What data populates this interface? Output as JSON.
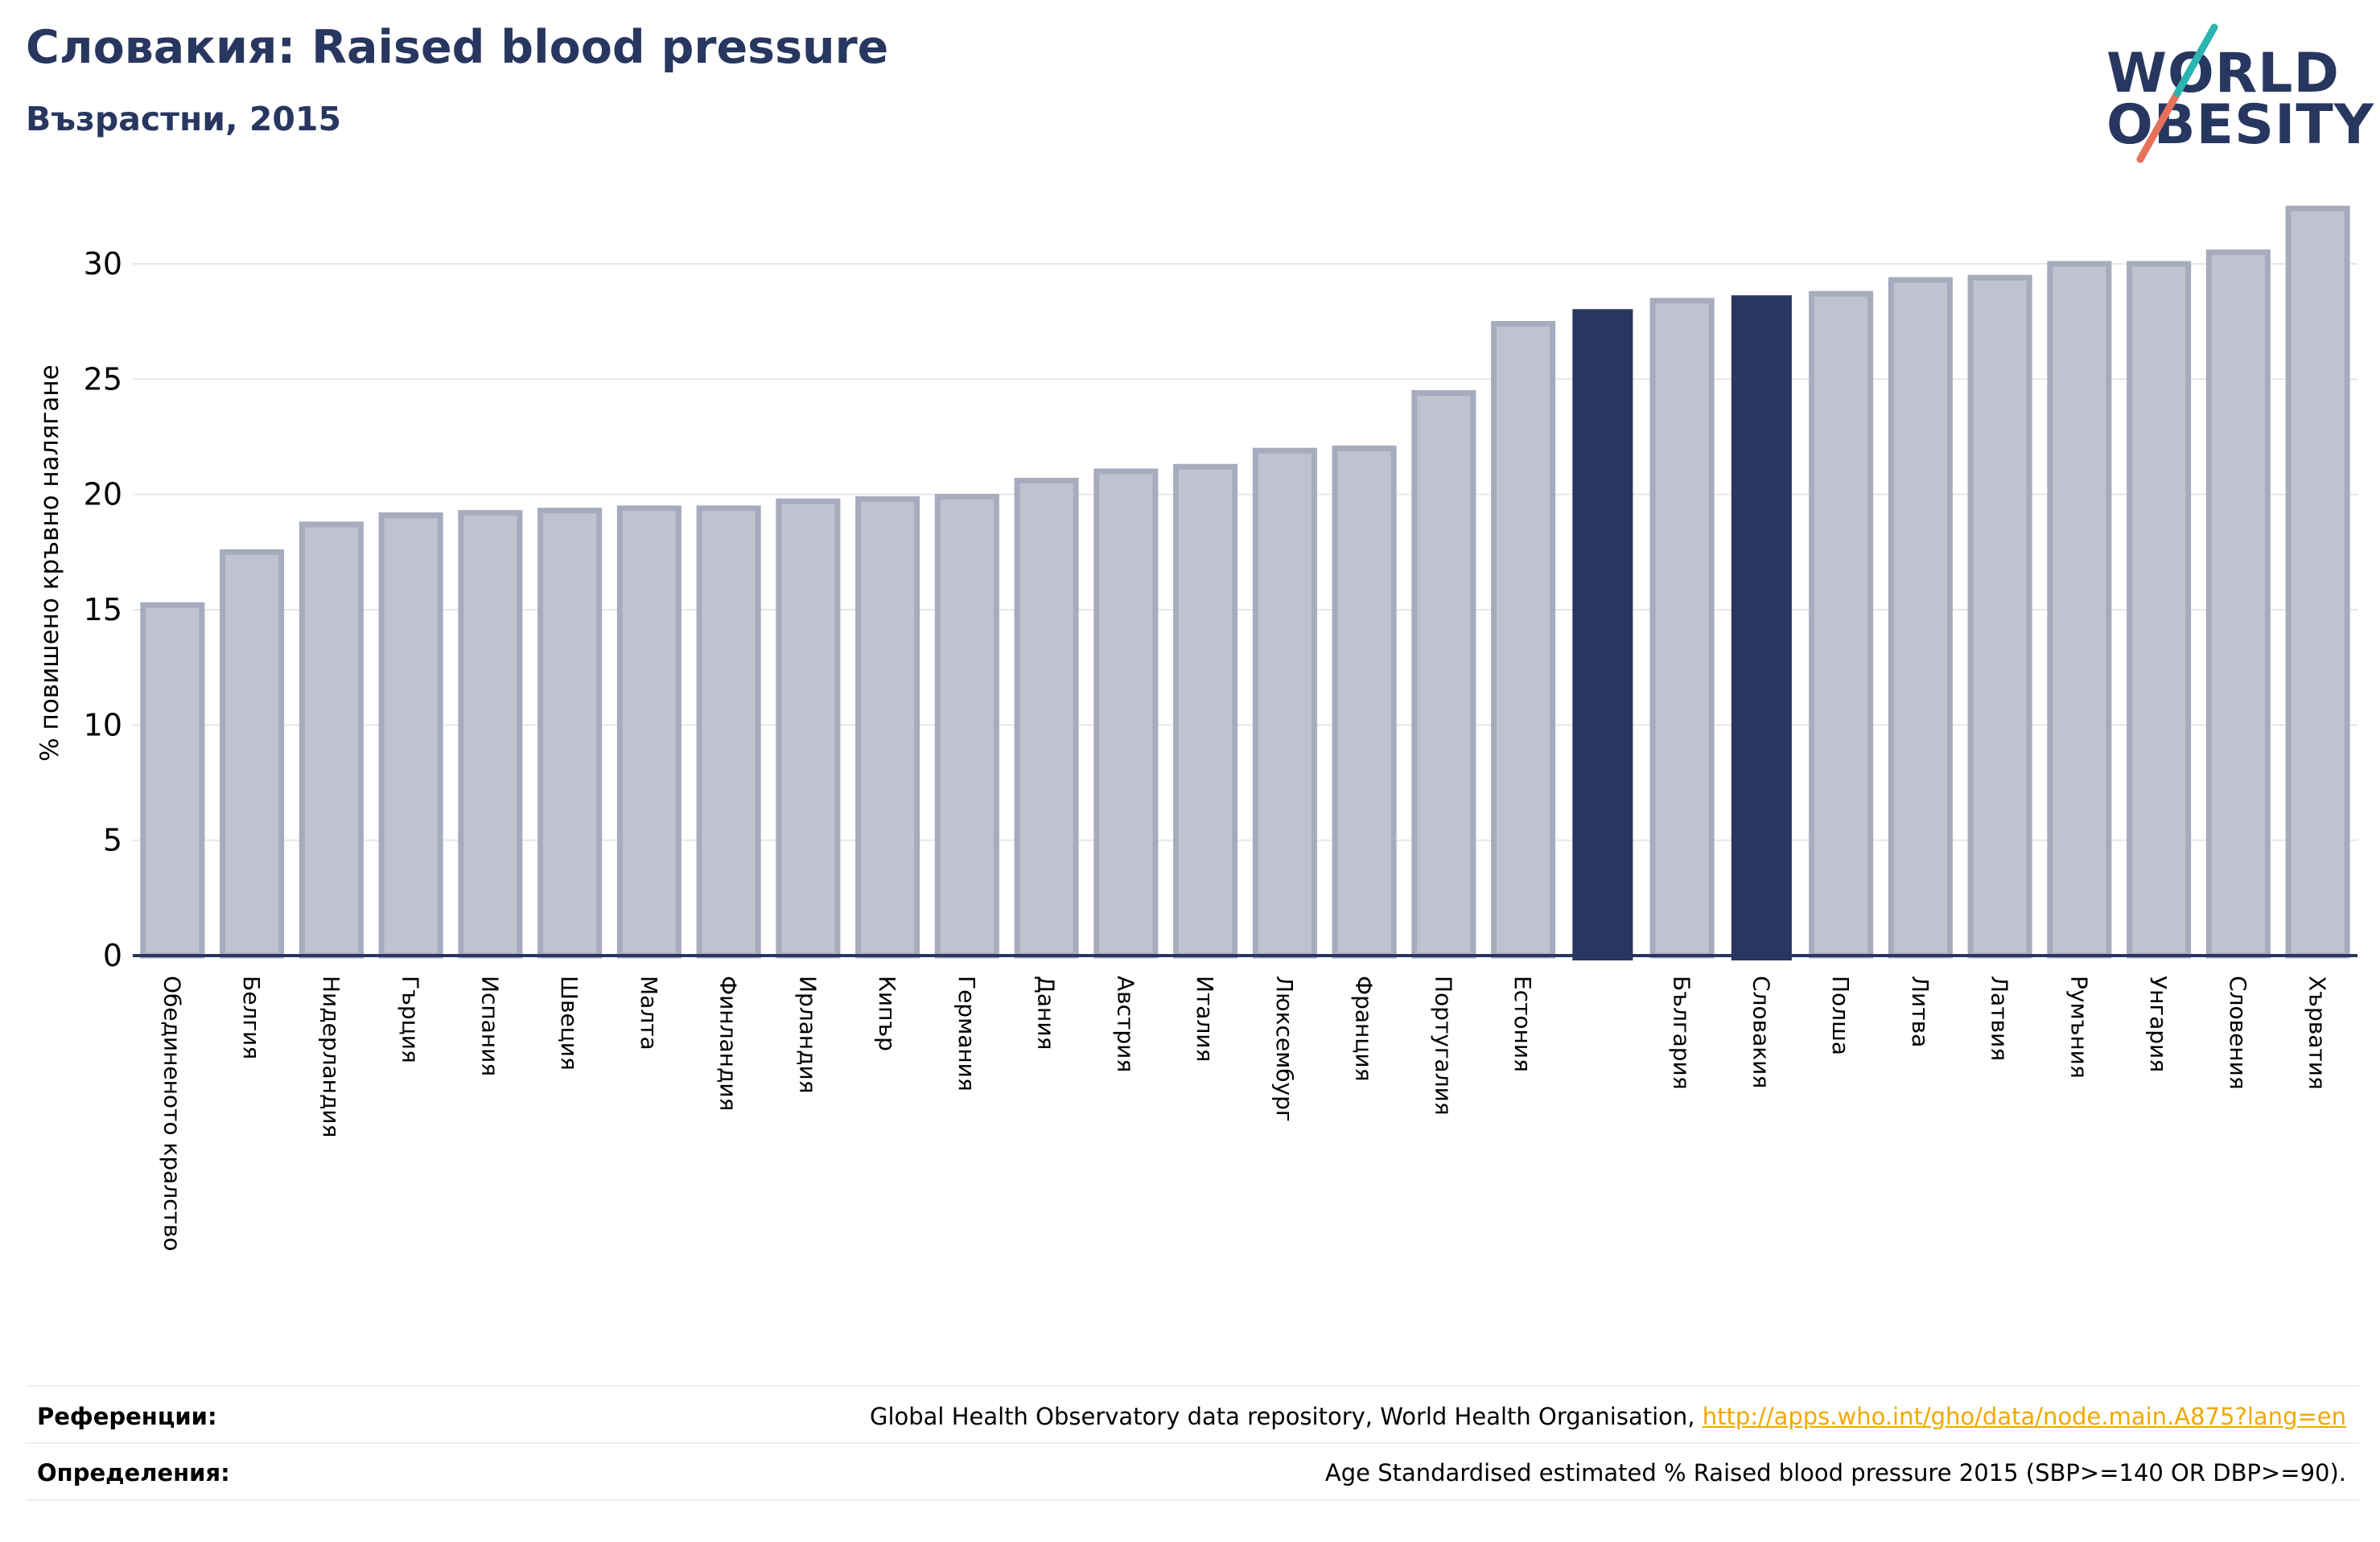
{
  "header": {
    "title": "Словакия: Raised blood pressure",
    "subtitle": "Възрастни, 2015"
  },
  "logo": {
    "line1": "WORLD",
    "line2": "OBESITY"
  },
  "colors": {
    "highlight": "#283760",
    "bar_fill": "#c0c3cf",
    "bar_edge": "#a6abbe",
    "text_dark": "#283760",
    "logo_teal": "#2bb5b0",
    "logo_red": "#e8705a",
    "link": "#f0a800"
  },
  "chart_data": {
    "type": "bar",
    "ylabel": "% повишено кръвно налягане",
    "ylim": [
      0,
      33
    ],
    "yticks": [
      0,
      5,
      10,
      15,
      20,
      25,
      30
    ],
    "grid": true,
    "categories": [
      "Обединеното кралство",
      "Белгия",
      "Нидерландия",
      "Гърция",
      "Испания",
      "Швеция",
      "Малта",
      "Финландия",
      "Ирландия",
      "Кипър",
      "Германия",
      "Дания",
      "Австрия",
      "Италия",
      "Люксембург",
      "Франция",
      "Португалия",
      "Естония",
      "",
      "България",
      "Словакия",
      "Полша",
      "Литва",
      "Латвия",
      "Румъния",
      "Унгария",
      "Словения",
      "Хърватия"
    ],
    "values": [
      15.2,
      17.5,
      18.7,
      19.1,
      19.2,
      19.3,
      19.4,
      19.4,
      19.7,
      19.8,
      19.9,
      20.6,
      21.0,
      21.2,
      21.9,
      22.0,
      24.4,
      27.4,
      28.0,
      28.4,
      28.6,
      28.7,
      29.3,
      29.4,
      30.0,
      30.0,
      30.5,
      32.4
    ],
    "highlighted": [
      18,
      20
    ]
  },
  "footer": {
    "references_label": "Референции:",
    "references_text": "Global Health Observatory data repository, World Health Organisation, ",
    "references_link": "http://apps.who.int/gho/data/node.main.A875?lang=en",
    "definitions_label": "Определения:",
    "definitions_text": "Age Standardised estimated % Raised blood pressure 2015 (SBP>=140 OR DBP>=90)."
  }
}
